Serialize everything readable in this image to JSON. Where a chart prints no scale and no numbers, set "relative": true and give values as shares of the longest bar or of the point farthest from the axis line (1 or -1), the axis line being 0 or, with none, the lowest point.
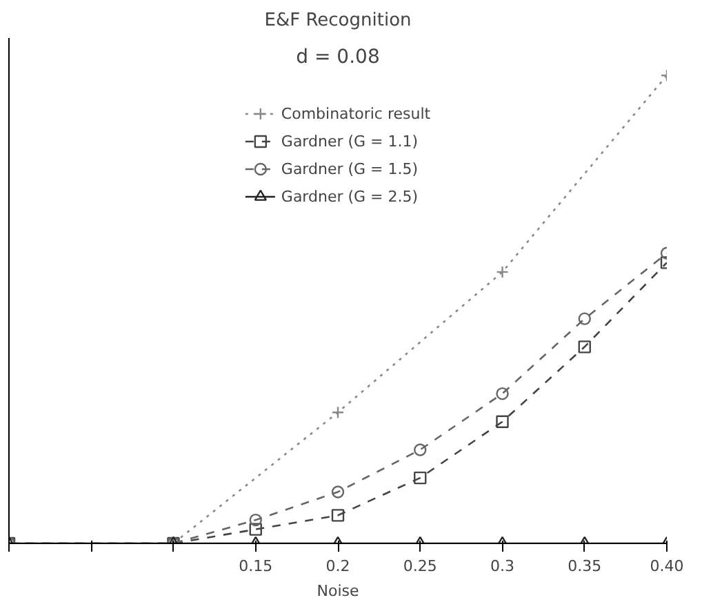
{
  "chart_data": {
    "type": "line",
    "title": "E&F Recognition",
    "xlabel": "Noise",
    "relative": true,
    "x": [
      0,
      0.1,
      0.15,
      0.2,
      0.25,
      0.3,
      0.35,
      0.4
    ],
    "xlim": [
      0,
      0.4
    ],
    "xticks": [
      {
        "value": 0,
        "label": null
      },
      {
        "value": 0.05,
        "label": null
      },
      {
        "value": 0.1,
        "label": null
      },
      0.15,
      0.2,
      0.25,
      0.3,
      0.35,
      {
        "value": 0.4,
        "label": "0.40"
      }
    ],
    "tick_labels": "x",
    "grid": false,
    "legend": "top",
    "annotations": [
      "d = 0.08"
    ],
    "series": [
      {
        "name": "Combinatoric result",
        "color": "#888888",
        "marker": "cross",
        "line_style": "dotted",
        "values": [
          0,
          0,
          null,
          0.28,
          null,
          0.58,
          null,
          1
        ]
      },
      {
        "name": "Gardner (G = 1.1)",
        "color": "#444444",
        "marker": "square",
        "line_style": "dashed",
        "values": [
          0,
          0,
          0.03,
          0.06,
          0.14,
          0.26,
          0.42,
          0.6
        ]
      },
      {
        "name": "Gardner (G = 1.5)",
        "color": "#666666",
        "marker": "circle",
        "line_style": "dashed",
        "values": [
          0,
          0,
          0.05,
          0.11,
          0.2,
          0.32,
          0.48,
          0.62
        ]
      },
      {
        "name": "Gardner (G = 2.5)",
        "color": "#222222",
        "marker": "triangle",
        "line_style": "solid",
        "values": [
          0,
          0,
          0,
          0,
          0,
          0,
          0,
          0
        ]
      }
    ]
  }
}
